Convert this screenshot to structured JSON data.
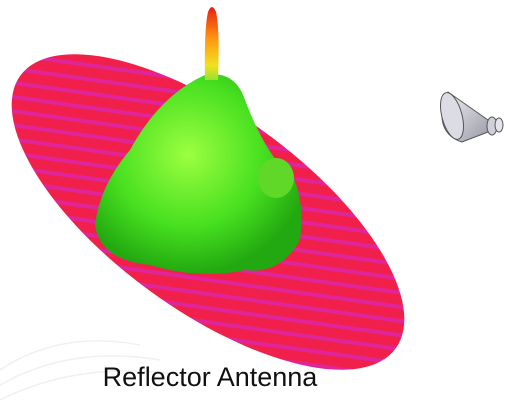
{
  "caption": "Reflector Antenna"
}
